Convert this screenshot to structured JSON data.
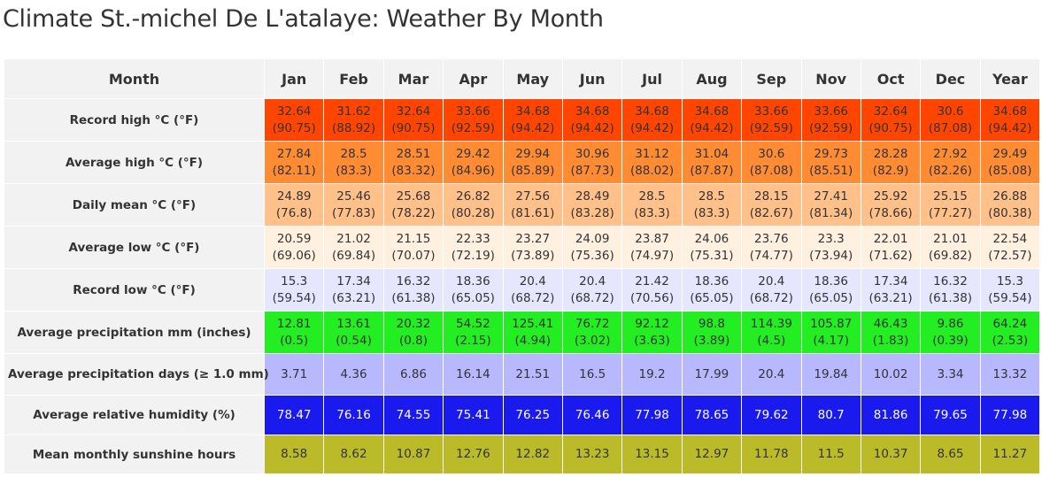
{
  "page": {
    "title": "Climate St.-michel De L'atalaye: Weather By Month"
  },
  "table": {
    "header_label": "Month",
    "columns": [
      "Jan",
      "Feb",
      "Mar",
      "Apr",
      "May",
      "Jun",
      "Jul",
      "Aug",
      "Sep",
      "Nov",
      "Oct",
      "Dec",
      "Year"
    ],
    "rows": [
      {
        "label": "Record high °C (°F)",
        "bg": "#ff4500",
        "fg": "#333333",
        "cells": [
          [
            "32.64",
            "(90.75)"
          ],
          [
            "31.62",
            "(88.92)"
          ],
          [
            "32.64",
            "(90.75)"
          ],
          [
            "33.66",
            "(92.59)"
          ],
          [
            "34.68",
            "(94.42)"
          ],
          [
            "34.68",
            "(94.42)"
          ],
          [
            "34.68",
            "(94.42)"
          ],
          [
            "34.68",
            "(94.42)"
          ],
          [
            "33.66",
            "(92.59)"
          ],
          [
            "33.66",
            "(92.59)"
          ],
          [
            "32.64",
            "(90.75)"
          ],
          [
            "30.6",
            "(87.08)"
          ],
          [
            "34.68",
            "(94.42)"
          ]
        ]
      },
      {
        "label": "Average high °C (°F)",
        "bg": "#ff8c33",
        "fg": "#333333",
        "cells": [
          [
            "27.84",
            "(82.11)"
          ],
          [
            "28.5",
            "(83.3)"
          ],
          [
            "28.51",
            "(83.32)"
          ],
          [
            "29.42",
            "(84.96)"
          ],
          [
            "29.94",
            "(85.89)"
          ],
          [
            "30.96",
            "(87.73)"
          ],
          [
            "31.12",
            "(88.02)"
          ],
          [
            "31.04",
            "(87.87)"
          ],
          [
            "30.6",
            "(87.08)"
          ],
          [
            "29.73",
            "(85.51)"
          ],
          [
            "28.28",
            "(82.9)"
          ],
          [
            "27.92",
            "(82.26)"
          ],
          [
            "29.49",
            "(85.08)"
          ]
        ]
      },
      {
        "label": "Daily mean °C (°F)",
        "bg": "#ffc08a",
        "fg": "#333333",
        "cells": [
          [
            "24.89",
            "(76.8)"
          ],
          [
            "25.46",
            "(77.83)"
          ],
          [
            "25.68",
            "(78.22)"
          ],
          [
            "26.82",
            "(80.28)"
          ],
          [
            "27.56",
            "(81.61)"
          ],
          [
            "28.49",
            "(83.28)"
          ],
          [
            "28.5",
            "(83.3)"
          ],
          [
            "28.5",
            "(83.3)"
          ],
          [
            "28.15",
            "(82.67)"
          ],
          [
            "27.41",
            "(81.34)"
          ],
          [
            "25.92",
            "(78.66)"
          ],
          [
            "25.15",
            "(77.27)"
          ],
          [
            "26.88",
            "(80.38)"
          ]
        ]
      },
      {
        "label": "Average low °C (°F)",
        "bg": "#fff0e0",
        "fg": "#333333",
        "cells": [
          [
            "20.59",
            "(69.06)"
          ],
          [
            "21.02",
            "(69.84)"
          ],
          [
            "21.15",
            "(70.07)"
          ],
          [
            "22.33",
            "(72.19)"
          ],
          [
            "23.27",
            "(73.89)"
          ],
          [
            "24.09",
            "(75.36)"
          ],
          [
            "23.87",
            "(74.97)"
          ],
          [
            "24.06",
            "(75.31)"
          ],
          [
            "23.76",
            "(74.77)"
          ],
          [
            "23.3",
            "(73.94)"
          ],
          [
            "22.01",
            "(71.62)"
          ],
          [
            "21.01",
            "(69.82)"
          ],
          [
            "22.54",
            "(72.57)"
          ]
        ]
      },
      {
        "label": "Record low °C (°F)",
        "bg": "#e6e6ff",
        "fg": "#333333",
        "cells": [
          [
            "15.3",
            "(59.54)"
          ],
          [
            "17.34",
            "(63.21)"
          ],
          [
            "16.32",
            "(61.38)"
          ],
          [
            "18.36",
            "(65.05)"
          ],
          [
            "20.4",
            "(68.72)"
          ],
          [
            "20.4",
            "(68.72)"
          ],
          [
            "21.42",
            "(70.56)"
          ],
          [
            "18.36",
            "(65.05)"
          ],
          [
            "20.4",
            "(68.72)"
          ],
          [
            "18.36",
            "(65.05)"
          ],
          [
            "17.34",
            "(63.21)"
          ],
          [
            "16.32",
            "(61.38)"
          ],
          [
            "15.3",
            "(59.54)"
          ]
        ]
      },
      {
        "label": "Average precipitation mm (inches)",
        "bg": "#22ee22",
        "fg": "#333333",
        "cells": [
          [
            "12.81",
            "(0.5)"
          ],
          [
            "13.61",
            "(0.54)"
          ],
          [
            "20.32",
            "(0.8)"
          ],
          [
            "54.52",
            "(2.15)"
          ],
          [
            "125.41",
            "(4.94)"
          ],
          [
            "76.72",
            "(3.02)"
          ],
          [
            "92.12",
            "(3.63)"
          ],
          [
            "98.8",
            "(3.89)"
          ],
          [
            "114.39",
            "(4.5)"
          ],
          [
            "105.87",
            "(4.17)"
          ],
          [
            "46.43",
            "(1.83)"
          ],
          [
            "9.86",
            "(0.39)"
          ],
          [
            "64.24",
            "(2.53)"
          ]
        ]
      },
      {
        "label": "Average precipitation days (≥ 1.0 mm)",
        "bg": "#b8b8ff",
        "fg": "#333333",
        "cells": [
          [
            "3.71"
          ],
          [
            "4.36"
          ],
          [
            "6.86"
          ],
          [
            "16.14"
          ],
          [
            "21.51"
          ],
          [
            "16.5"
          ],
          [
            "19.2"
          ],
          [
            "17.99"
          ],
          [
            "20.4"
          ],
          [
            "19.84"
          ],
          [
            "10.02"
          ],
          [
            "3.34"
          ],
          [
            "13.32"
          ]
        ]
      },
      {
        "label": "Average relative humidity (%)",
        "bg": "#1a1aee",
        "fg": "#ffffff",
        "cells": [
          [
            "78.47"
          ],
          [
            "76.16"
          ],
          [
            "74.55"
          ],
          [
            "75.41"
          ],
          [
            "76.25"
          ],
          [
            "76.46"
          ],
          [
            "77.98"
          ],
          [
            "78.65"
          ],
          [
            "79.62"
          ],
          [
            "80.7"
          ],
          [
            "81.86"
          ],
          [
            "79.65"
          ],
          [
            "77.98"
          ]
        ]
      },
      {
        "label": "Mean monthly sunshine hours",
        "bg": "#bbbb2a",
        "fg": "#333333",
        "cells": [
          [
            "8.58"
          ],
          [
            "8.62"
          ],
          [
            "10.87"
          ],
          [
            "12.76"
          ],
          [
            "12.82"
          ],
          [
            "13.23"
          ],
          [
            "13.15"
          ],
          [
            "12.97"
          ],
          [
            "11.78"
          ],
          [
            "11.5"
          ],
          [
            "10.37"
          ],
          [
            "8.65"
          ],
          [
            "11.27"
          ]
        ]
      }
    ]
  }
}
